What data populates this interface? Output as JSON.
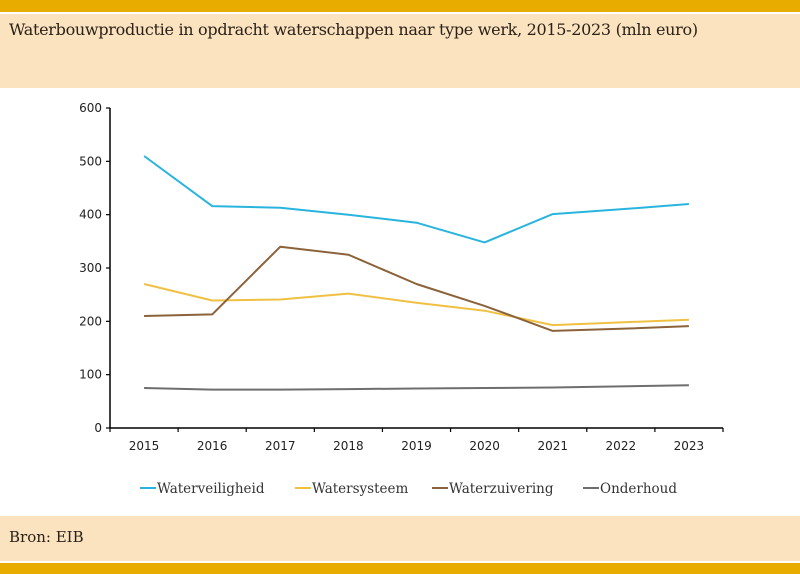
{
  "header": {
    "title": "Waterbouwproductie in opdracht waterschappen naar type werk, 2015-2023 (mln euro)"
  },
  "footer": {
    "source": "Bron: EIB"
  },
  "colors": {
    "band": "#E8AC00",
    "box": "#FBE3C0"
  },
  "chart_data": {
    "type": "line",
    "title": "Waterbouwproductie in opdracht waterschappen naar type werk, 2015-2023 (mln euro)",
    "xlabel": "",
    "ylabel": "",
    "categories": [
      "2015",
      "2016",
      "2017",
      "2018",
      "2019",
      "2020",
      "2021",
      "2022",
      "2023"
    ],
    "ylim": [
      0,
      600
    ],
    "yticks": [
      0,
      100,
      200,
      300,
      400,
      500,
      600
    ],
    "grid": false,
    "legend": "bottom",
    "series": [
      {
        "name": "Waterveiligheid",
        "color": "#29B4DE",
        "values": [
          510,
          416,
          413,
          400,
          385,
          348,
          401,
          410,
          420
        ]
      },
      {
        "name": "Watersysteem",
        "color": "#F0C043",
        "values": [
          270,
          239,
          241,
          252,
          235,
          220,
          193,
          198,
          203
        ]
      },
      {
        "name": "Waterzuivering",
        "color": "#8C6239",
        "values": [
          210,
          213,
          340,
          325,
          270,
          229,
          182,
          186,
          191
        ]
      },
      {
        "name": "Onderhoud",
        "color": "#6E6E6E",
        "values": [
          75,
          72,
          72,
          73,
          74,
          75,
          76,
          78,
          80
        ]
      }
    ]
  }
}
